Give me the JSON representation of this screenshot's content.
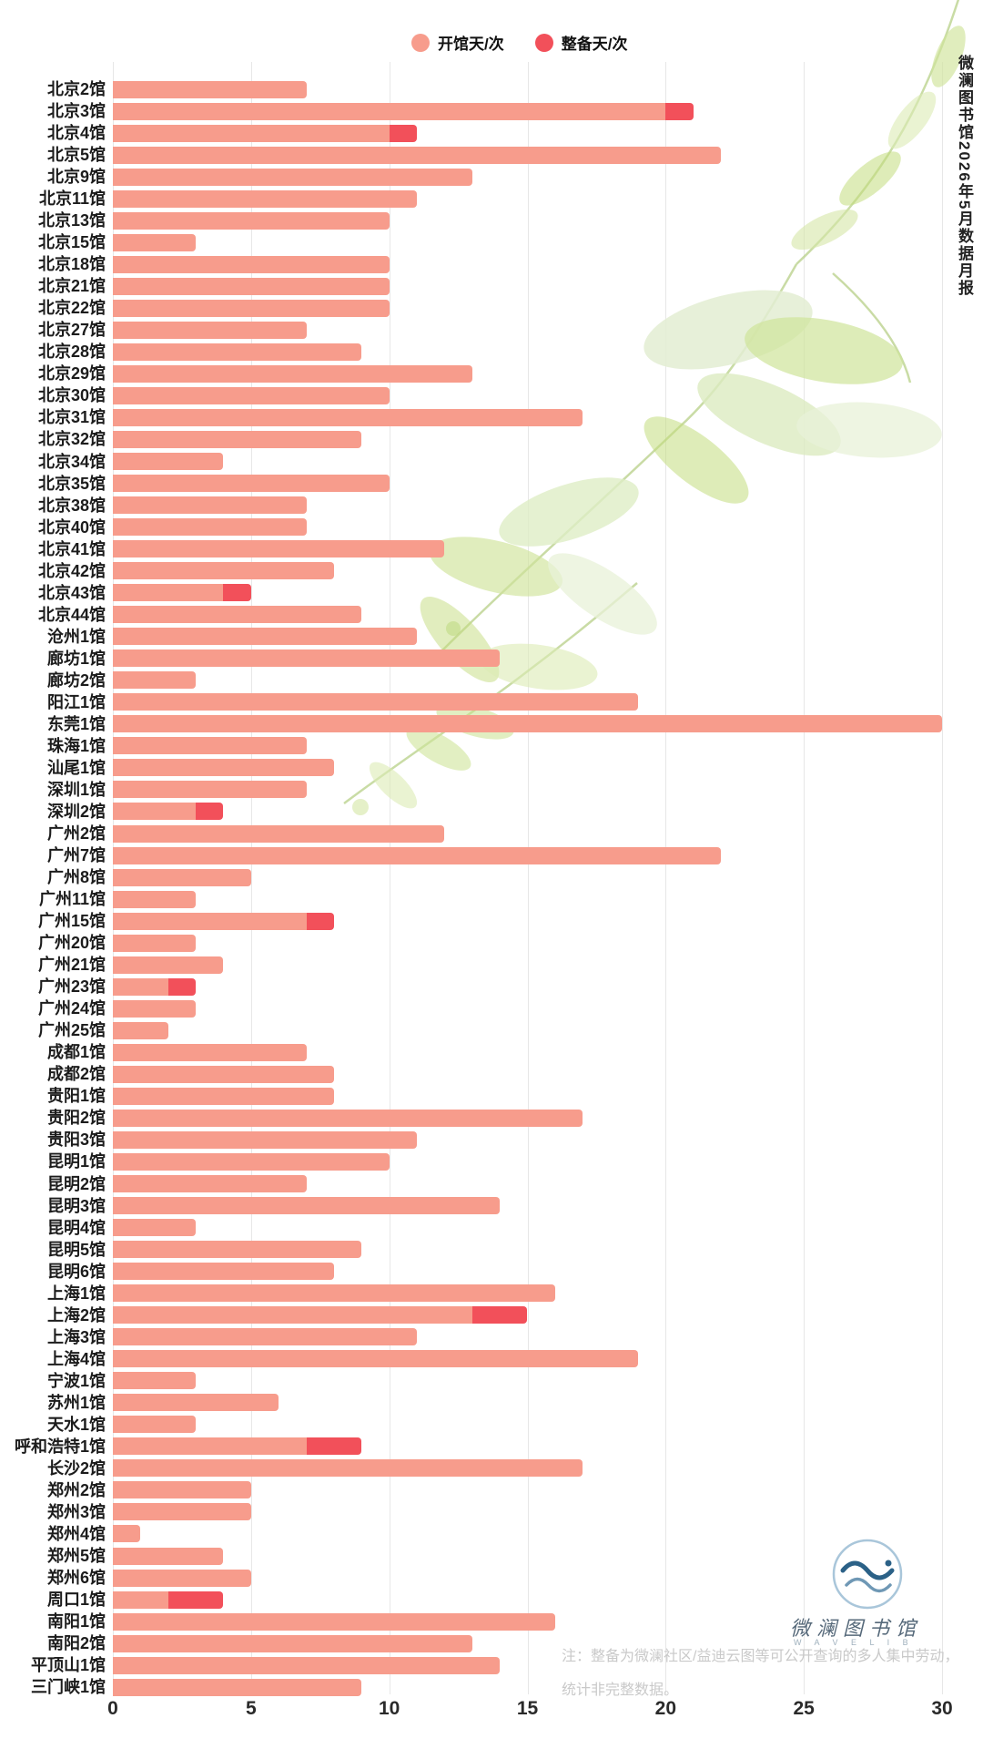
{
  "page": {
    "background": "#ffffff"
  },
  "legend": {
    "items": [
      {
        "label": "开馆天/次",
        "color": "#F79C8C"
      },
      {
        "label": "整备天/次",
        "color": "#F2505A"
      }
    ]
  },
  "side_title": "微澜图书馆2026年5月数据月报",
  "note": {
    "line1": "注：整备为微澜社区/益迪云图等可公开查询的多人集中劳动，",
    "line2": "统计非完整数据。"
  },
  "logo": {
    "name": "微澜图书馆",
    "latin": "W A V E L I B"
  },
  "chart_data": {
    "type": "bar",
    "orientation": "horizontal",
    "title": "",
    "xlabel": "",
    "ylabel": "",
    "xlim": [
      0,
      30
    ],
    "x_ticks": [
      0,
      5,
      10,
      15,
      20,
      25,
      30
    ],
    "grid": true,
    "legend_position": "top",
    "categories": [
      "北京2馆",
      "北京3馆",
      "北京4馆",
      "北京5馆",
      "北京9馆",
      "北京11馆",
      "北京13馆",
      "北京15馆",
      "北京18馆",
      "北京21馆",
      "北京22馆",
      "北京27馆",
      "北京28馆",
      "北京29馆",
      "北京30馆",
      "北京31馆",
      "北京32馆",
      "北京34馆",
      "北京35馆",
      "北京38馆",
      "北京40馆",
      "北京41馆",
      "北京42馆",
      "北京43馆",
      "北京44馆",
      "沧州1馆",
      "廊坊1馆",
      "廊坊2馆",
      "阳江1馆",
      "东莞1馆",
      "珠海1馆",
      "汕尾1馆",
      "深圳1馆",
      "深圳2馆",
      "广州2馆",
      "广州7馆",
      "广州8馆",
      "广州11馆",
      "广州15馆",
      "广州20馆",
      "广州21馆",
      "广州23馆",
      "广州24馆",
      "广州25馆",
      "成都1馆",
      "成都2馆",
      "贵阳1馆",
      "贵阳2馆",
      "贵阳3馆",
      "昆明1馆",
      "昆明2馆",
      "昆明3馆",
      "昆明4馆",
      "昆明5馆",
      "昆明6馆",
      "上海1馆",
      "上海2馆",
      "上海3馆",
      "上海4馆",
      "宁波1馆",
      "苏州1馆",
      "天水1馆",
      "呼和浩特1馆",
      "长沙2馆",
      "郑州2馆",
      "郑州3馆",
      "郑州4馆",
      "郑州5馆",
      "郑州6馆",
      "周口1馆",
      "南阳1馆",
      "南阳2馆",
      "平顶山1馆",
      "三门峡1馆"
    ],
    "series": [
      {
        "name": "开馆天/次",
        "color": "#F79C8C",
        "values": [
          7,
          20,
          10,
          22,
          13,
          11,
          10,
          3,
          10,
          10,
          10,
          7,
          9,
          13,
          10,
          17,
          9,
          4,
          10,
          7,
          7,
          12,
          8,
          4,
          9,
          11,
          14,
          3,
          19,
          30,
          7,
          8,
          7,
          3,
          12,
          22,
          5,
          3,
          7,
          3,
          4,
          2,
          3,
          2,
          7,
          8,
          8,
          17,
          11,
          10,
          7,
          14,
          3,
          9,
          8,
          16,
          13,
          11,
          19,
          3,
          6,
          3,
          7,
          17,
          5,
          5,
          1,
          4,
          5,
          2,
          16,
          13,
          14,
          9
        ]
      },
      {
        "name": "整备天/次",
        "color": "#F2505A",
        "values": [
          0,
          1,
          1,
          0,
          0,
          0,
          0,
          0,
          0,
          0,
          0,
          0,
          0,
          0,
          0,
          0,
          0,
          0,
          0,
          0,
          0,
          0,
          0,
          1,
          0,
          0,
          0,
          0,
          0,
          0,
          0,
          0,
          0,
          1,
          0,
          0,
          0,
          0,
          1,
          0,
          0,
          1,
          0,
          0,
          0,
          0,
          0,
          0,
          0,
          0,
          0,
          0,
          0,
          0,
          0,
          0,
          2,
          0,
          0,
          0,
          0,
          0,
          2,
          0,
          0,
          0,
          0,
          0,
          0,
          2,
          0,
          0,
          0,
          0
        ]
      }
    ]
  }
}
